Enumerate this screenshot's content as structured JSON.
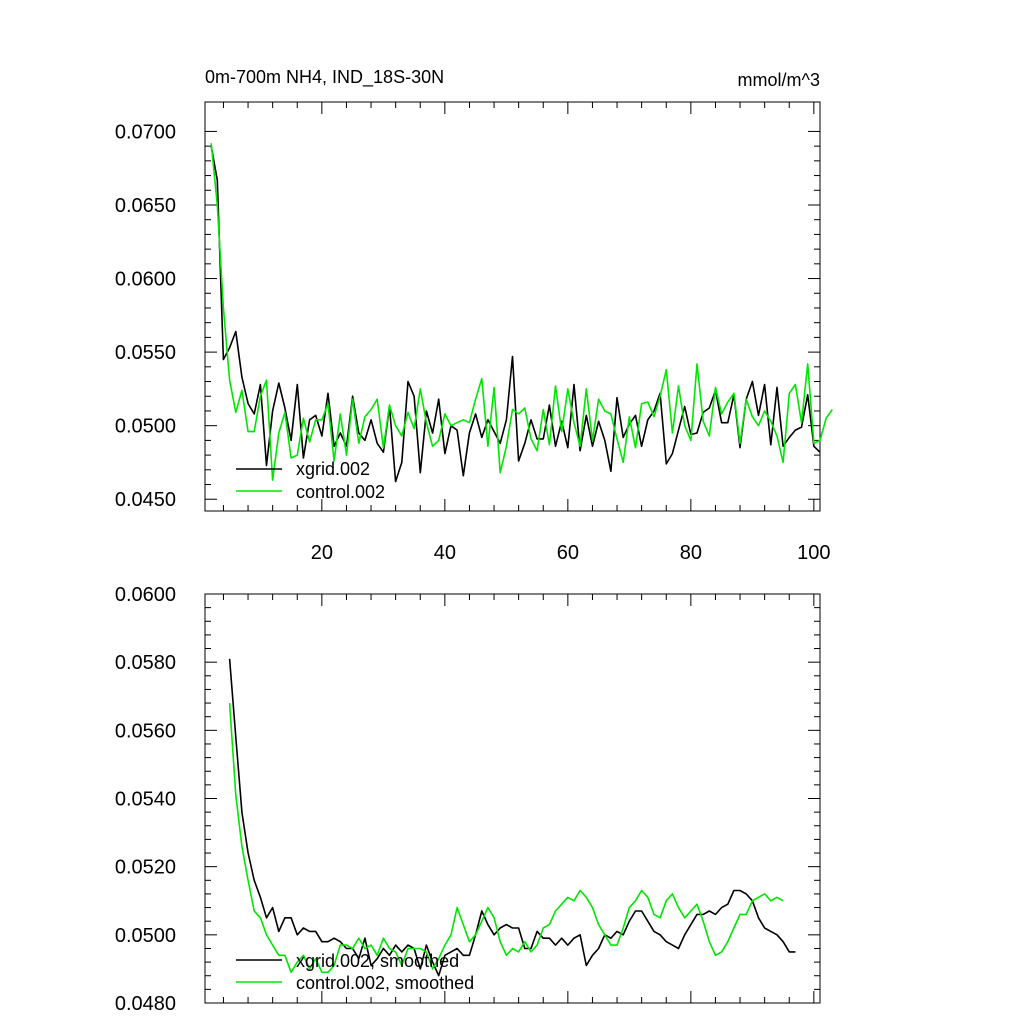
{
  "colors": {
    "xgrid": "#000000",
    "control": "#00e600",
    "axis": "#000000",
    "background": "#ffffff"
  },
  "chart_data": [
    {
      "type": "line",
      "title": "0m-700m NH4, IND_18S-30N",
      "units": "mmol/m^3",
      "xlim": [
        1,
        101
      ],
      "ylim": [
        0.0442,
        0.072
      ],
      "xticks": [
        20,
        40,
        60,
        80,
        100
      ],
      "xtick_labels": [
        "20",
        "40",
        "60",
        "80",
        "100"
      ],
      "yticks": [
        0.045,
        0.05,
        0.055,
        0.06,
        0.065,
        0.07
      ],
      "ytick_labels": [
        "0.0450",
        "0.0500",
        "0.0550",
        "0.0600",
        "0.0650",
        "0.0700"
      ],
      "legend_position": "bottom-left",
      "x_start": 2,
      "series": [
        {
          "name": "xgrid.002",
          "color": "#000000",
          "values": [
            0.069,
            0.0667,
            0.0545,
            0.0553,
            0.0564,
            0.0533,
            0.0515,
            0.0508,
            0.0528,
            0.0473,
            0.051,
            0.0529,
            0.0512,
            0.049,
            0.0528,
            0.0478,
            0.0504,
            0.0507,
            0.0493,
            0.0522,
            0.0486,
            0.0495,
            0.0486,
            0.052,
            0.0495,
            0.049,
            0.0504,
            0.0488,
            0.0482,
            0.0513,
            0.0462,
            0.0475,
            0.053,
            0.052,
            0.0468,
            0.051,
            0.0495,
            0.0518,
            0.0481,
            0.05,
            0.0497,
            0.0466,
            0.0495,
            0.0508,
            0.0492,
            0.0504,
            0.0496,
            0.0488,
            0.0504,
            0.0547,
            0.0476,
            0.0488,
            0.0504,
            0.0491,
            0.0491,
            0.0514,
            0.0486,
            0.0503,
            0.0485,
            0.0528,
            0.0483,
            0.0507,
            0.0486,
            0.0503,
            0.049,
            0.0469,
            0.0519,
            0.0492,
            0.0501,
            0.0507,
            0.0486,
            0.0504,
            0.051,
            0.0522,
            0.0474,
            0.0481,
            0.0497,
            0.0513,
            0.0494,
            0.0495,
            0.0509,
            0.0512,
            0.0524,
            0.0502,
            0.0502,
            0.0521,
            0.0485,
            0.0518,
            0.053,
            0.0507,
            0.0528,
            0.0487,
            0.0526,
            0.0486,
            0.0492,
            0.0497,
            0.0499,
            0.0521,
            0.0486,
            0.0482
          ]
        },
        {
          "name": "control.002",
          "color": "#00e600",
          "values": [
            0.0692,
            0.065,
            0.058,
            0.0531,
            0.0509,
            0.0524,
            0.0496,
            0.0496,
            0.052,
            0.0531,
            0.0463,
            0.0495,
            0.0509,
            0.0478,
            0.048,
            0.0505,
            0.0489,
            0.0504,
            0.0504,
            0.0515,
            0.0476,
            0.0508,
            0.048,
            0.0518,
            0.0488,
            0.0506,
            0.0511,
            0.0518,
            0.0485,
            0.0514,
            0.05,
            0.0493,
            0.0509,
            0.0498,
            0.0525,
            0.0502,
            0.0486,
            0.049,
            0.0508,
            0.05,
            0.0502,
            0.0504,
            0.0502,
            0.0518,
            0.0532,
            0.0486,
            0.0526,
            0.0468,
            0.0486,
            0.0511,
            0.0508,
            0.0512,
            0.0491,
            0.0483,
            0.0511,
            0.0487,
            0.0527,
            0.0496,
            0.0525,
            0.0502,
            0.0486,
            0.0525,
            0.049,
            0.0518,
            0.051,
            0.0508,
            0.0491,
            0.0475,
            0.0506,
            0.0485,
            0.0515,
            0.0516,
            0.0506,
            0.052,
            0.0538,
            0.0495,
            0.0527,
            0.05,
            0.049,
            0.0542,
            0.0503,
            0.0493,
            0.0526,
            0.0508,
            0.0516,
            0.0522,
            0.0488,
            0.0518,
            0.0506,
            0.05,
            0.051,
            0.0503,
            0.0493,
            0.0475,
            0.0522,
            0.0528,
            0.0502,
            0.0542,
            0.0488,
            0.049,
            0.0505,
            0.0511
          ]
        }
      ]
    },
    {
      "type": "line",
      "xlim": [
        1,
        101
      ],
      "ylim": [
        0.048,
        0.06
      ],
      "xticks": [
        20,
        40,
        60,
        80,
        100
      ],
      "xtick_labels": [],
      "yticks": [
        0.048,
        0.05,
        0.052,
        0.054,
        0.056,
        0.058,
        0.06
      ],
      "ytick_labels": [
        "0.0480",
        "0.0500",
        "0.0520",
        "0.0540",
        "0.0560",
        "0.0580",
        "0.0600"
      ],
      "legend_position": "bottom-left",
      "x_start": 5,
      "series": [
        {
          "name": "xgrid.002, smoothed",
          "color": "#000000",
          "values": [
            0.0581,
            0.0558,
            0.0536,
            0.0524,
            0.0516,
            0.0511,
            0.0505,
            0.0508,
            0.0501,
            0.0505,
            0.0505,
            0.05,
            0.0502,
            0.0501,
            0.0501,
            0.0498,
            0.0498,
            0.0499,
            0.0498,
            0.0496,
            0.0496,
            0.0493,
            0.0499,
            0.0491,
            0.0493,
            0.0496,
            0.0494,
            0.0497,
            0.0495,
            0.0497,
            0.0496,
            0.049,
            0.0497,
            0.0492,
            0.0488,
            0.0494,
            0.0495,
            0.0496,
            0.0494,
            0.0494,
            0.05,
            0.0507,
            0.0503,
            0.05,
            0.0502,
            0.0503,
            0.0502,
            0.0502,
            0.0496,
            0.0496,
            0.0501,
            0.0499,
            0.0499,
            0.0497,
            0.0499,
            0.0497,
            0.0499,
            0.05,
            0.0491,
            0.0494,
            0.0496,
            0.05,
            0.0499,
            0.0501,
            0.05,
            0.0504,
            0.0507,
            0.0507,
            0.0504,
            0.0501,
            0.05,
            0.0498,
            0.0497,
            0.0496,
            0.05,
            0.0503,
            0.0506,
            0.0506,
            0.0507,
            0.0506,
            0.0508,
            0.0509,
            0.0513,
            0.0513,
            0.0512,
            0.051,
            0.0505,
            0.0502,
            0.0501,
            0.05,
            0.0498,
            0.0495,
            0.0495
          ]
        },
        {
          "name": "control.002, smoothed",
          "color": "#00e600",
          "values": [
            0.0568,
            0.0541,
            0.0526,
            0.0516,
            0.0507,
            0.0505,
            0.05,
            0.0497,
            0.0494,
            0.0494,
            0.0489,
            0.0492,
            0.0494,
            0.049,
            0.0493,
            0.0489,
            0.0489,
            0.0491,
            0.0497,
            0.0497,
            0.0496,
            0.0499,
            0.0496,
            0.0497,
            0.0494,
            0.0499,
            0.0496,
            0.0495,
            0.0491,
            0.0496,
            0.0496,
            0.0496,
            0.0495,
            0.049,
            0.0493,
            0.0497,
            0.05,
            0.0508,
            0.0503,
            0.0498,
            0.05,
            0.0504,
            0.0508,
            0.0505,
            0.0498,
            0.0494,
            0.0496,
            0.0495,
            0.0498,
            0.0495,
            0.0497,
            0.0502,
            0.0503,
            0.0507,
            0.0509,
            0.0511,
            0.051,
            0.0513,
            0.0511,
            0.0508,
            0.0503,
            0.05,
            0.0497,
            0.0497,
            0.0502,
            0.0508,
            0.051,
            0.0513,
            0.0511,
            0.0506,
            0.0505,
            0.051,
            0.0512,
            0.0508,
            0.0505,
            0.0507,
            0.0509,
            0.0504,
            0.0498,
            0.0494,
            0.0495,
            0.0498,
            0.0502,
            0.0506,
            0.0506,
            0.051,
            0.0511,
            0.0512,
            0.051,
            0.0511,
            0.051
          ]
        }
      ]
    }
  ]
}
